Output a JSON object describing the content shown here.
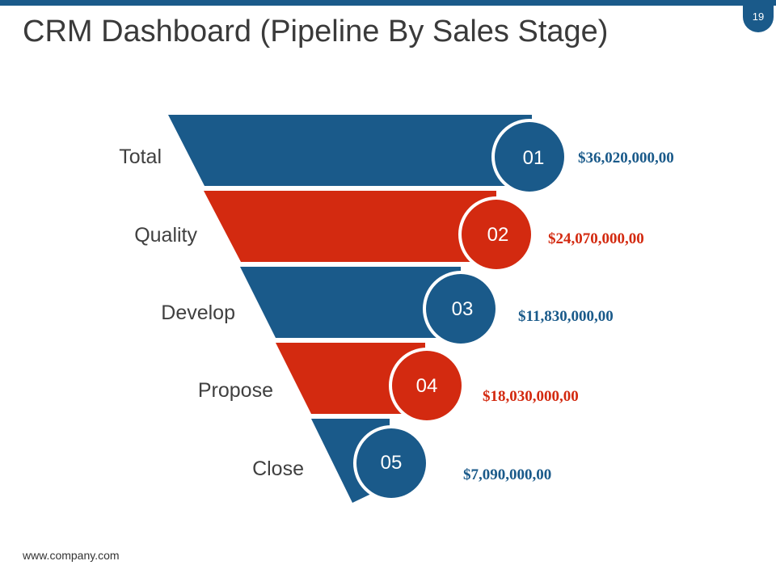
{
  "page_number": "19",
  "title": "CRM Dashboard (Pipeline By Sales Stage)",
  "footer": "www.company.com",
  "colors": {
    "blue": "#1a5a8a",
    "red": "#d32a10",
    "label": "#404040"
  },
  "stages": [
    {
      "label": "Total",
      "number": "01",
      "value": "$36,020,000,00",
      "color": "blue"
    },
    {
      "label": "Quality",
      "number": "02",
      "value": "$24,070,000,00",
      "color": "red"
    },
    {
      "label": "Develop",
      "number": "03",
      "value": "$11,830,000,00",
      "color": "blue"
    },
    {
      "label": "Propose",
      "number": "04",
      "value": "$18,030,000,00",
      "color": "red"
    },
    {
      "label": "Close",
      "number": "05",
      "value": "$7,090,000,00",
      "color": "blue"
    }
  ]
}
